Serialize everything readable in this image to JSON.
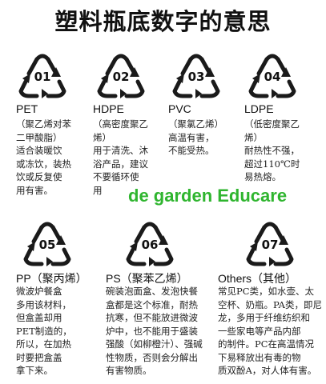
{
  "title": "塑料瓶底数字的意思",
  "watermark": "de garden Educare",
  "items": [
    {
      "number": "01",
      "name": "PET",
      "lines": [
        "（聚乙烯对苯",
        "二甲酸脂）",
        "适合装暖饮",
        "或冻饮，装热",
        "饮或反复使",
        "用有害。"
      ]
    },
    {
      "number": "02",
      "name": "HDPE",
      "lines": [
        "（高密度聚乙",
        "烯）",
        "用于清洗、沐",
        "浴产品，建议",
        "不要循环使",
        "用"
      ]
    },
    {
      "number": "03",
      "name": "PVC",
      "lines": [
        "（聚氯乙烯）",
        "高温有害，",
        "不能受热。"
      ]
    },
    {
      "number": "04",
      "name": "LDPE",
      "lines": [
        "（低密度聚乙",
        "烯）",
        "耐热性不强，",
        "超过110℃时",
        "易热熔。"
      ]
    },
    {
      "number": "05",
      "name": "PP（聚丙烯）",
      "lines": [
        "微波炉餐盒",
        "多用该材料，",
        "但盒盖却用",
        "PET制造的，",
        "所以，在加热",
        "时要把盒盖",
        "拿下来。"
      ]
    },
    {
      "number": "06",
      "name": "PS（聚苯乙烯）",
      "lines": [
        "碗装泡面盒、发泡快餐",
        "盒都是这个标准，耐热",
        "抗寒，但不能放进微波",
        "炉中，也不能用于盛装",
        "强酸（如柳橙汁）、强碱",
        "性物质，否则会分解出",
        "有害物质。"
      ]
    },
    {
      "number": "07",
      "name": "Others（其他）",
      "lines": [
        "常见PC类，如水壶、太",
        "空杯、奶瓶。PA类，即尼",
        "龙，多用于纤维纺织和",
        "一些家电等产品内部",
        "的制件。PC在高温情况",
        "下易释放出有毒的物",
        "质双酚A，对人体有害。"
      ]
    }
  ]
}
